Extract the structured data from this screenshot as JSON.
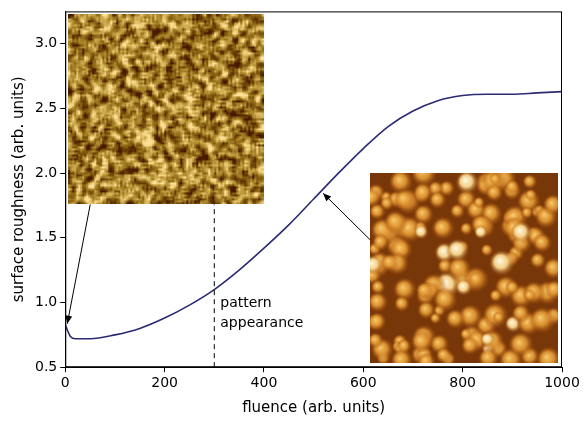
{
  "chart_data": {
    "type": "line",
    "x_label": "fluence (arb. units)",
    "y_label": "surface roughness (arb. units)",
    "x": [
      0,
      5,
      10,
      20,
      50,
      100,
      150,
      200,
      250,
      300,
      350,
      400,
      450,
      500,
      550,
      600,
      650,
      700,
      750,
      800,
      850,
      900,
      950,
      1000
    ],
    "values": [
      0.83,
      0.78,
      0.74,
      0.72,
      0.72,
      0.75,
      0.8,
      0.88,
      0.98,
      1.1,
      1.25,
      1.42,
      1.6,
      1.8,
      2.0,
      2.19,
      2.36,
      2.48,
      2.56,
      2.6,
      2.61,
      2.61,
      2.62,
      2.63
    ],
    "color": "#2b2a72",
    "xlim": [
      0,
      1000
    ],
    "xticks": [
      0,
      200,
      400,
      600,
      800,
      1000
    ],
    "ylim": [
      0.5,
      3.25
    ],
    "yticks": [
      0.5,
      {
        "value": 1,
        "label": "1.0"
      },
      1.5,
      {
        "value": 2,
        "label": "2.0"
      },
      2.5,
      {
        "value": 3,
        "label": "3.0"
      }
    ],
    "grid": false,
    "annotations": [
      {
        "text": "pattern appearance",
        "x": 300
      }
    ],
    "arrows": [
      {
        "x": 2,
        "y": 0.82
      },
      {
        "x": 515,
        "y": 1.86
      }
    ]
  }
}
